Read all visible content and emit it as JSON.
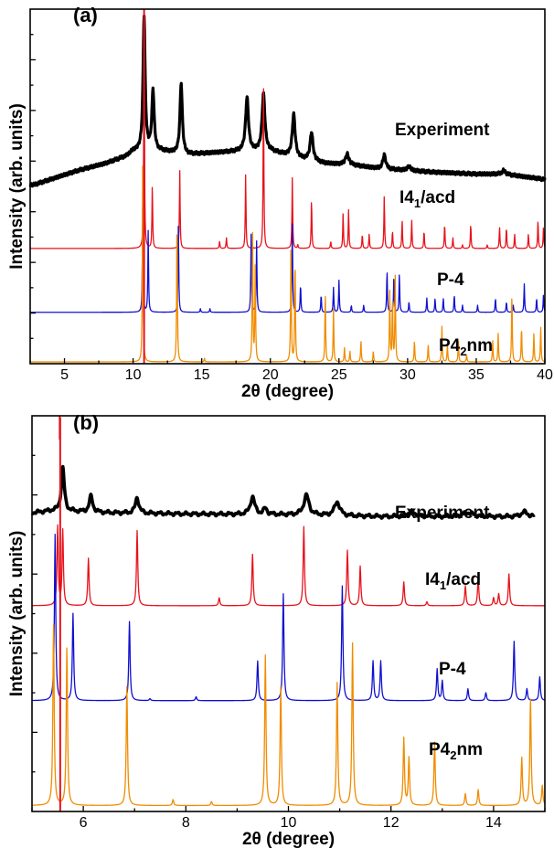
{
  "colors": {
    "experiment": "#000000",
    "i41acd": "#e8121b",
    "p4": "#1010d0",
    "p42nm": "#f08c00"
  },
  "chart_data": [
    {
      "type": "line",
      "panel_label": "(a)",
      "xlabel": "2θ (degree)",
      "ylabel": "Intensity (arb. units)",
      "xlim": [
        2.5,
        40
      ],
      "xticks": [
        "5",
        "10",
        "15",
        "20",
        "25",
        "30",
        "35",
        "40"
      ],
      "xtick_values": [
        5,
        10,
        15,
        20,
        25,
        30,
        35,
        40
      ],
      "ylim": [
        0,
        1
      ],
      "yticks": "unlabeled",
      "series": [
        {
          "name": "Experiment",
          "key": "experiment",
          "baseline": 0.5,
          "background": [
            [
              2.8,
              0.505
            ],
            [
              4,
              0.52
            ],
            [
              6,
              0.545
            ],
            [
              8,
              0.565
            ],
            [
              9.5,
              0.585
            ],
            [
              10,
              0.6
            ],
            [
              12,
              0.6
            ],
            [
              14,
              0.59
            ],
            [
              16,
              0.595
            ],
            [
              18,
              0.6
            ],
            [
              20,
              0.6
            ],
            [
              22,
              0.58
            ],
            [
              24,
              0.565
            ],
            [
              26,
              0.56
            ],
            [
              28,
              0.55
            ],
            [
              30,
              0.545
            ],
            [
              32,
              0.54
            ],
            [
              35,
              0.535
            ],
            [
              37,
              0.535
            ],
            [
              40,
              0.52
            ]
          ],
          "peaks": [
            [
              10.8,
              0.38,
              0.18
            ],
            [
              11.45,
              0.17,
              0.2
            ],
            [
              13.5,
              0.2,
              0.2
            ],
            [
              18.3,
              0.15,
              0.25
            ],
            [
              19.5,
              0.16,
              0.25
            ],
            [
              21.7,
              0.12,
              0.25
            ],
            [
              23.0,
              0.08,
              0.25
            ],
            [
              25.6,
              0.03,
              0.3
            ],
            [
              28.3,
              0.04,
              0.25
            ],
            [
              30.1,
              0.012,
              0.3
            ],
            [
              37,
              0.01,
              0.3
            ]
          ]
        },
        {
          "name": "I41/acd",
          "name_main": "I4",
          "name_sub": "1",
          "name_rest": "/acd",
          "key": "i41acd",
          "baseline": 0.325,
          "peaks": [
            [
              10.8,
              0.675,
              0.06
            ],
            [
              11.4,
              0.18,
              0.06
            ],
            [
              13.4,
              0.22,
              0.06
            ],
            [
              16.3,
              0.02,
              0.06
            ],
            [
              16.8,
              0.03,
              0.06
            ],
            [
              18.2,
              0.21,
              0.06
            ],
            [
              19.5,
              0.49,
              0.06
            ],
            [
              21.6,
              0.2,
              0.06
            ],
            [
              22.0,
              0.01,
              0.06
            ],
            [
              23.0,
              0.14,
              0.06
            ],
            [
              24.4,
              0.02,
              0.06
            ],
            [
              25.3,
              0.1,
              0.06
            ],
            [
              25.7,
              0.11,
              0.06
            ],
            [
              26.7,
              0.04,
              0.06
            ],
            [
              27.2,
              0.04,
              0.06
            ],
            [
              28.3,
              0.15,
              0.06
            ],
            [
              28.9,
              0.05,
              0.06
            ],
            [
              29.6,
              0.08,
              0.06
            ],
            [
              30.3,
              0.08,
              0.06
            ],
            [
              31.2,
              0.05,
              0.06
            ],
            [
              32.7,
              0.07,
              0.06
            ],
            [
              33.3,
              0.03,
              0.06
            ],
            [
              34.0,
              0.01,
              0.06
            ],
            [
              34.6,
              0.07,
              0.06
            ],
            [
              35.8,
              0.01,
              0.06
            ],
            [
              36.7,
              0.06,
              0.06
            ],
            [
              37.2,
              0.06,
              0.06
            ],
            [
              37.8,
              0.04,
              0.06
            ],
            [
              38.8,
              0.04,
              0.06
            ],
            [
              39.5,
              0.08,
              0.06
            ],
            [
              39.9,
              0.06,
              0.06
            ]
          ]
        },
        {
          "name": "P-4",
          "key": "p4",
          "baseline": 0.145,
          "peaks": [
            [
              10.7,
              0.3,
              0.06
            ],
            [
              11.1,
              0.23,
              0.06
            ],
            [
              13.3,
              0.25,
              0.06
            ],
            [
              14.9,
              0.01,
              0.06
            ],
            [
              15.6,
              0.01,
              0.06
            ],
            [
              18.6,
              0.22,
              0.06
            ],
            [
              19.0,
              0.2,
              0.06
            ],
            [
              21.6,
              0.25,
              0.06
            ],
            [
              22.2,
              0.08,
              0.06
            ],
            [
              23.7,
              0.05,
              0.06
            ],
            [
              24.6,
              0.07,
              0.06
            ],
            [
              25.0,
              0.09,
              0.06
            ],
            [
              25.9,
              0.02,
              0.06
            ],
            [
              26.8,
              0.02,
              0.06
            ],
            [
              28.5,
              0.12,
              0.06
            ],
            [
              29.0,
              0.1,
              0.06
            ],
            [
              29.4,
              0.11,
              0.06
            ],
            [
              30.1,
              0.03,
              0.06
            ],
            [
              31.4,
              0.04,
              0.06
            ],
            [
              32.0,
              0.04,
              0.06
            ],
            [
              32.6,
              0.04,
              0.06
            ],
            [
              33.4,
              0.05,
              0.06
            ],
            [
              34.0,
              0.02,
              0.06
            ],
            [
              35.1,
              0.02,
              0.06
            ],
            [
              36.4,
              0.04,
              0.06
            ],
            [
              37.2,
              0.03,
              0.06
            ],
            [
              37.7,
              0.02,
              0.06
            ],
            [
              38.5,
              0.08,
              0.06
            ],
            [
              39.4,
              0.04,
              0.06
            ],
            [
              39.9,
              0.05,
              0.06
            ]
          ]
        },
        {
          "name": "P42nm",
          "name_main": "P4",
          "name_sub": "2",
          "name_rest": "nm",
          "key": "p42nm",
          "baseline": 0.005,
          "peaks": [
            [
              10.7,
              0.56,
              0.06
            ],
            [
              13.2,
              0.42,
              0.06
            ],
            [
              15.2,
              0.01,
              0.06
            ],
            [
              18.7,
              0.37,
              0.06
            ],
            [
              18.9,
              0.28,
              0.06
            ],
            [
              21.5,
              0.34,
              0.06
            ],
            [
              21.8,
              0.3,
              0.06
            ],
            [
              24.0,
              0.2,
              0.06
            ],
            [
              24.6,
              0.15,
              0.06
            ],
            [
              25.4,
              0.04,
              0.06
            ],
            [
              25.8,
              0.03,
              0.06
            ],
            [
              26.6,
              0.06,
              0.06
            ],
            [
              27.5,
              0.03,
              0.06
            ],
            [
              28.7,
              0.2,
              0.06
            ],
            [
              28.9,
              0.18,
              0.06
            ],
            [
              29.1,
              0.24,
              0.06
            ],
            [
              30.5,
              0.06,
              0.06
            ],
            [
              31.5,
              0.05,
              0.06
            ],
            [
              32.5,
              0.1,
              0.06
            ],
            [
              32.9,
              0.05,
              0.06
            ],
            [
              33.7,
              0.06,
              0.06
            ],
            [
              34.3,
              0.02,
              0.06
            ],
            [
              36.2,
              0.06,
              0.06
            ],
            [
              36.6,
              0.08,
              0.06
            ],
            [
              37.6,
              0.2,
              0.06
            ],
            [
              38.3,
              0.1,
              0.06
            ],
            [
              39.2,
              0.08,
              0.06
            ],
            [
              39.7,
              0.1,
              0.06
            ]
          ]
        }
      ],
      "marker_line": {
        "x": 10.8,
        "ymin": 0.0,
        "ymax": 1.0
      }
    },
    {
      "type": "line",
      "panel_label": "(b)",
      "xlabel": "2θ (degree)",
      "ylabel": "Intensity (arb. units)",
      "xlim": [
        5.0,
        15.0
      ],
      "xticks": [
        "6",
        "8",
        "10",
        "12",
        "14"
      ],
      "xtick_values": [
        6,
        8,
        10,
        12,
        14
      ],
      "ylim": [
        0,
        1
      ],
      "yticks": "unlabeled",
      "series": [
        {
          "name": "Experiment",
          "key": "experiment",
          "baseline": 0.745,
          "xmax_data": 14.8,
          "xmin_data": 5.0,
          "background": [
            [
              5.0,
              0.755
            ],
            [
              5.4,
              0.76
            ],
            [
              6.5,
              0.755
            ],
            [
              8.0,
              0.752
            ],
            [
              10.0,
              0.75
            ],
            [
              12.0,
              0.745
            ],
            [
              14.8,
              0.745
            ]
          ],
          "peaks": [
            [
              5.6,
              0.11,
              0.07
            ],
            [
              6.15,
              0.04,
              0.08
            ],
            [
              7.05,
              0.04,
              0.08
            ],
            [
              9.3,
              0.045,
              0.1
            ],
            [
              9.55,
              0.015,
              0.08
            ],
            [
              10.35,
              0.05,
              0.12
            ],
            [
              10.95,
              0.035,
              0.12
            ],
            [
              12.4,
              0.012,
              0.2
            ],
            [
              13.5,
              0.01,
              0.25
            ],
            [
              14.6,
              0.012,
              0.15
            ]
          ]
        },
        {
          "name": "I41/acd",
          "name_main": "I4",
          "name_sub": "1",
          "name_rest": "/acd",
          "key": "i41acd",
          "baseline": 0.52,
          "peaks": [
            [
              5.5,
              0.2,
              0.03
            ],
            [
              5.6,
              0.19,
              0.03
            ],
            [
              6.1,
              0.12,
              0.03
            ],
            [
              7.05,
              0.19,
              0.03
            ],
            [
              8.65,
              0.02,
              0.03
            ],
            [
              9.3,
              0.13,
              0.03
            ],
            [
              10.3,
              0.2,
              0.03
            ],
            [
              11.15,
              0.14,
              0.03
            ],
            [
              11.4,
              0.1,
              0.03
            ],
            [
              12.25,
              0.06,
              0.03
            ],
            [
              12.7,
              0.01,
              0.03
            ],
            [
              13.45,
              0.05,
              0.03
            ],
            [
              13.7,
              0.07,
              0.03
            ],
            [
              14.0,
              0.02,
              0.03
            ],
            [
              14.1,
              0.03,
              0.03
            ],
            [
              14.3,
              0.08,
              0.03
            ]
          ]
        },
        {
          "name": "P-4",
          "key": "p4",
          "baseline": 0.28,
          "peaks": [
            [
              5.45,
              0.42,
              0.03
            ],
            [
              5.8,
              0.22,
              0.03
            ],
            [
              6.9,
              0.2,
              0.03
            ],
            [
              7.3,
              0.005,
              0.03
            ],
            [
              8.2,
              0.01,
              0.03
            ],
            [
              9.4,
              0.1,
              0.03
            ],
            [
              9.9,
              0.27,
              0.03
            ],
            [
              11.05,
              0.29,
              0.03
            ],
            [
              11.65,
              0.1,
              0.03
            ],
            [
              11.8,
              0.1,
              0.03
            ],
            [
              12.9,
              0.08,
              0.03
            ],
            [
              13.0,
              0.05,
              0.03
            ],
            [
              13.5,
              0.03,
              0.03
            ],
            [
              13.85,
              0.02,
              0.03
            ],
            [
              14.4,
              0.15,
              0.03
            ],
            [
              14.65,
              0.03,
              0.03
            ],
            [
              14.9,
              0.06,
              0.03
            ]
          ]
        },
        {
          "name": "P42nm",
          "name_main": "P4",
          "name_sub": "2",
          "name_rest": "nm",
          "key": "p42nm",
          "baseline": 0.015,
          "peaks": [
            [
              5.42,
              0.46,
              0.03
            ],
            [
              5.68,
              0.4,
              0.03
            ],
            [
              6.85,
              0.3,
              0.03
            ],
            [
              7.75,
              0.015,
              0.03
            ],
            [
              8.5,
              0.01,
              0.03
            ],
            [
              9.55,
              0.38,
              0.03
            ],
            [
              9.85,
              0.3,
              0.03
            ],
            [
              10.95,
              0.31,
              0.03
            ],
            [
              11.25,
              0.41,
              0.03
            ],
            [
              12.25,
              0.17,
              0.03
            ],
            [
              12.35,
              0.12,
              0.03
            ],
            [
              12.85,
              0.16,
              0.03
            ],
            [
              13.45,
              0.03,
              0.03
            ],
            [
              13.7,
              0.04,
              0.03
            ],
            [
              14.55,
              0.12,
              0.03
            ],
            [
              14.72,
              0.27,
              0.03
            ],
            [
              14.95,
              0.05,
              0.03
            ]
          ]
        }
      ],
      "marker_line": {
        "x": 5.55,
        "ymin": 0.0,
        "ymax": 1.0
      }
    }
  ]
}
